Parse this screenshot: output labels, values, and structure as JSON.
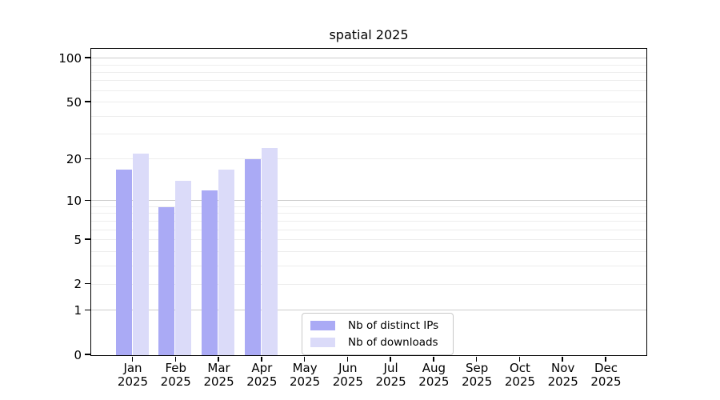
{
  "chart_data": {
    "type": "bar",
    "title": "spatial 2025",
    "months": [
      "Jan",
      "Feb",
      "Mar",
      "Apr",
      "May",
      "Jun",
      "Jul",
      "Aug",
      "Sep",
      "Oct",
      "Nov",
      "Dec"
    ],
    "year": "2025",
    "series": [
      {
        "name": "Nb of distinct IPs",
        "color": "#aaaaf5",
        "values": [
          17,
          9,
          12,
          20,
          null,
          null,
          null,
          null,
          null,
          null,
          null,
          null
        ]
      },
      {
        "name": "Nb of downloads",
        "color": "#dbdbf9",
        "values": [
          22,
          14,
          17,
          24,
          null,
          null,
          null,
          null,
          null,
          null,
          null,
          null
        ]
      }
    ],
    "y_scale": "log1p",
    "ylim": [
      0,
      115
    ],
    "y_ticks": [
      0,
      1,
      2,
      5,
      10,
      20,
      50,
      100
    ],
    "grid_major": [
      1,
      10,
      100
    ],
    "grid_minor": [
      2,
      3,
      4,
      5,
      6,
      7,
      8,
      9,
      20,
      30,
      40,
      50,
      60,
      70,
      80,
      90
    ],
    "legend": {
      "position": "bottom-center"
    },
    "axis_color": "#000000",
    "grid_major_color": "#cccccc",
    "grid_minor_color": "#ededed"
  }
}
